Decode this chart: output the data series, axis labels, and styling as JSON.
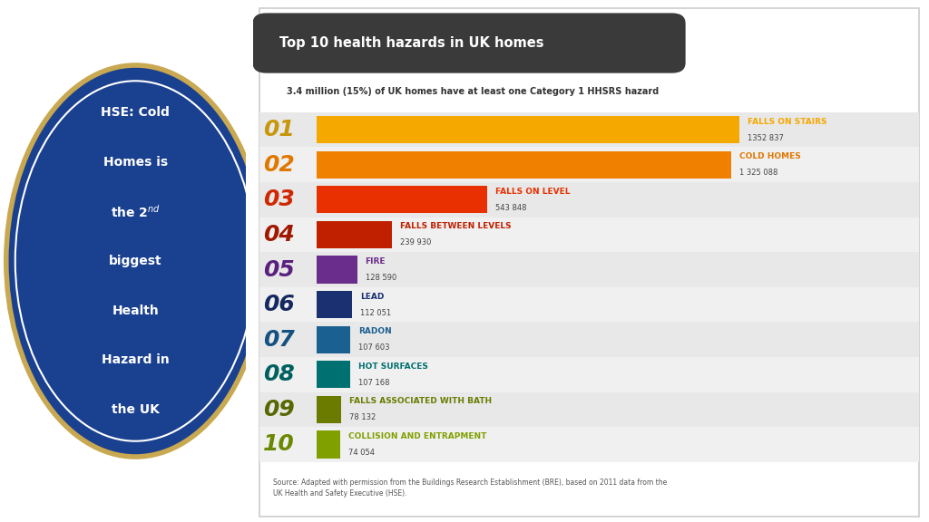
{
  "title": "Top 10 health hazards in UK homes",
  "subtitle": "3.4 million (15%) of UK homes have at least one Category 1 HHSRS hazard",
  "source": "Source: Adapted with permission from the Buildings Research Establishment (BRE), based on 2011 data from the\nUK Health and Safety Executive (HSE).",
  "categories": [
    "FALLS ON STAIRS",
    "COLD HOMES",
    "FALLS ON LEVEL",
    "FALLS BETWEEN LEVELS",
    "FIRE",
    "LEAD",
    "RADON",
    "HOT SURFACES",
    "FALLS ASSOCIATED WITH BATH",
    "COLLISION AND ENTRAPMENT"
  ],
  "values": [
    1352837,
    1325088,
    543848,
    239930,
    128590,
    112051,
    107603,
    107168,
    78132,
    74054
  ],
  "value_labels": [
    "1352 837",
    "1 325 088",
    "543 848",
    "239 930",
    "128 590",
    "112 051",
    "107 603",
    "107 168",
    "78 132",
    "74 054"
  ],
  "ranks": [
    "01",
    "02",
    "03",
    "04",
    "05",
    "06",
    "07",
    "08",
    "09",
    "10"
  ],
  "bar_colors": [
    "#F5A800",
    "#F08000",
    "#E83000",
    "#C02000",
    "#6B2D8B",
    "#1A3070",
    "#1A6090",
    "#007070",
    "#6B7B00",
    "#80A000"
  ],
  "rank_colors": [
    "#C8960A",
    "#E07800",
    "#D02800",
    "#A01800",
    "#5A2080",
    "#152860",
    "#145080",
    "#006060",
    "#586800",
    "#6A8800"
  ],
  "label_colors": [
    "#F5A800",
    "#E07800",
    "#E83000",
    "#C02000",
    "#6B2D8B",
    "#1A3070",
    "#1A6090",
    "#007070",
    "#6B7B00",
    "#80A000"
  ],
  "bg_color": "#FFFFFF",
  "title_bg": "#3A3A3A",
  "title_color": "#FFFFFF",
  "subtitle_color": "#333333",
  "left_panel_color": "#F5B942",
  "circle_fill": "#1A4090",
  "circle_border_outer": "#C8A850",
  "circle_border_inner": "#FFFFFF",
  "circle_text_color": "#FFFFFF",
  "row_bg_even": "#E8E8E8",
  "row_bg_odd": "#F0F0F0",
  "border_color": "#CCCCCC"
}
